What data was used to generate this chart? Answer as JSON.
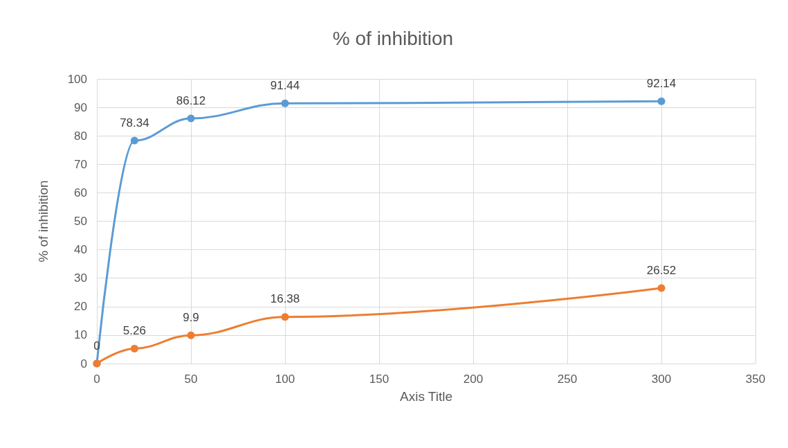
{
  "chart_data": {
    "type": "line",
    "title": "% of inhibition",
    "xlabel": "Axis Title",
    "ylabel": "% of inhibition",
    "x": [
      0,
      20,
      50,
      100,
      300
    ],
    "series": [
      {
        "color": "#5b9bd5",
        "values": [
          0,
          78.34,
          86.12,
          91.44,
          92.14
        ],
        "value_labels": [
          "0",
          "78.34",
          "86.12",
          "91.44",
          "92.14"
        ]
      },
      {
        "color": "#ed7d31",
        "values": [
          0,
          5.26,
          9.9,
          16.38,
          26.52
        ],
        "value_labels": [
          null,
          "5.26",
          "9.9",
          "16.38",
          "26.52"
        ]
      }
    ],
    "xlim": [
      0,
      350
    ],
    "xticks": [
      0,
      50,
      100,
      150,
      200,
      250,
      300,
      350
    ],
    "ylim": [
      0,
      100
    ],
    "yticks": [
      0,
      10,
      20,
      30,
      40,
      50,
      60,
      70,
      80,
      90,
      100
    ],
    "grid": true,
    "marker": "circle",
    "line_style": "solid"
  }
}
